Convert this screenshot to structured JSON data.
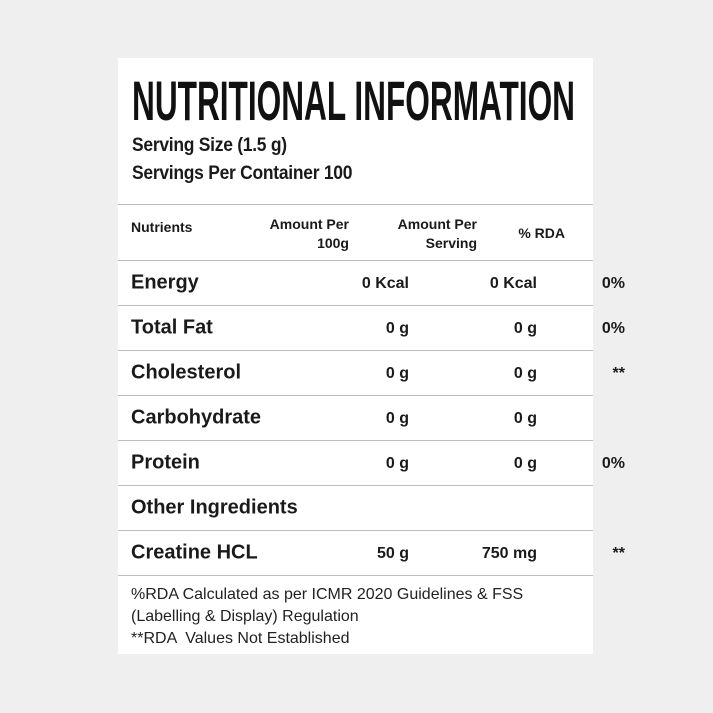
{
  "title": "NUTRITIONAL INFORMATION",
  "serving_size": "Serving Size (1.5 g)",
  "servings_per_container": "Servings Per Container 100",
  "table": {
    "header": [
      "Nutrients",
      "Amount Per 100g",
      "Amount Per Serving",
      "% RDA"
    ],
    "rows": [
      [
        "Energy",
        "0 Kcal",
        "0 Kcal",
        "0%"
      ],
      [
        "Total Fat",
        "0 g",
        "0 g",
        "0%"
      ],
      [
        "Cholesterol",
        "0 g",
        "0 g",
        "**"
      ],
      [
        "Carbohydrate",
        "0 g",
        "0 g"
      ],
      [
        "Protein",
        "0 g",
        "0 g",
        "0%"
      ],
      [
        "Other Ingredients"
      ],
      [
        "Creatine HCL",
        "50 g",
        "750 mg",
        "**"
      ]
    ]
  },
  "footnotes": [
    "%RDA Calculated as per ICMR 2020 Guidelines & FSS (Labelling & Display) Regulation",
    "**RDA  Values Not Established"
  ]
}
